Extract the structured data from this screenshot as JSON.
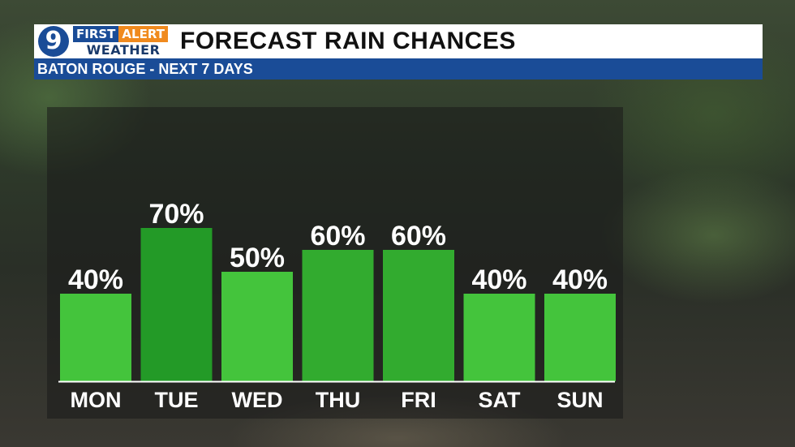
{
  "header": {
    "logo_number": "9",
    "brand_first": "FIRST",
    "brand_alert": "ALERT",
    "brand_weather": "WEATHER",
    "title": "FORECAST RAIN CHANCES",
    "subtitle": "BATON ROUGE - NEXT 7 DAYS"
  },
  "colors": {
    "brand_blue": "#1a4c97",
    "brand_orange": "#f08a1e",
    "bar_light": "#44c43c",
    "bar_mid": "#32ab2f",
    "bar_dark": "#239a27"
  },
  "chart_data": {
    "type": "bar",
    "categories": [
      "MON",
      "TUE",
      "WED",
      "THU",
      "FRI",
      "SAT",
      "SUN"
    ],
    "values": [
      40,
      70,
      50,
      60,
      60,
      40,
      40
    ],
    "value_labels": [
      "40%",
      "70%",
      "50%",
      "60%",
      "60%",
      "40%",
      "40%"
    ],
    "unit": "%",
    "ylim": [
      0,
      100
    ],
    "grid": false,
    "legend": "none"
  }
}
